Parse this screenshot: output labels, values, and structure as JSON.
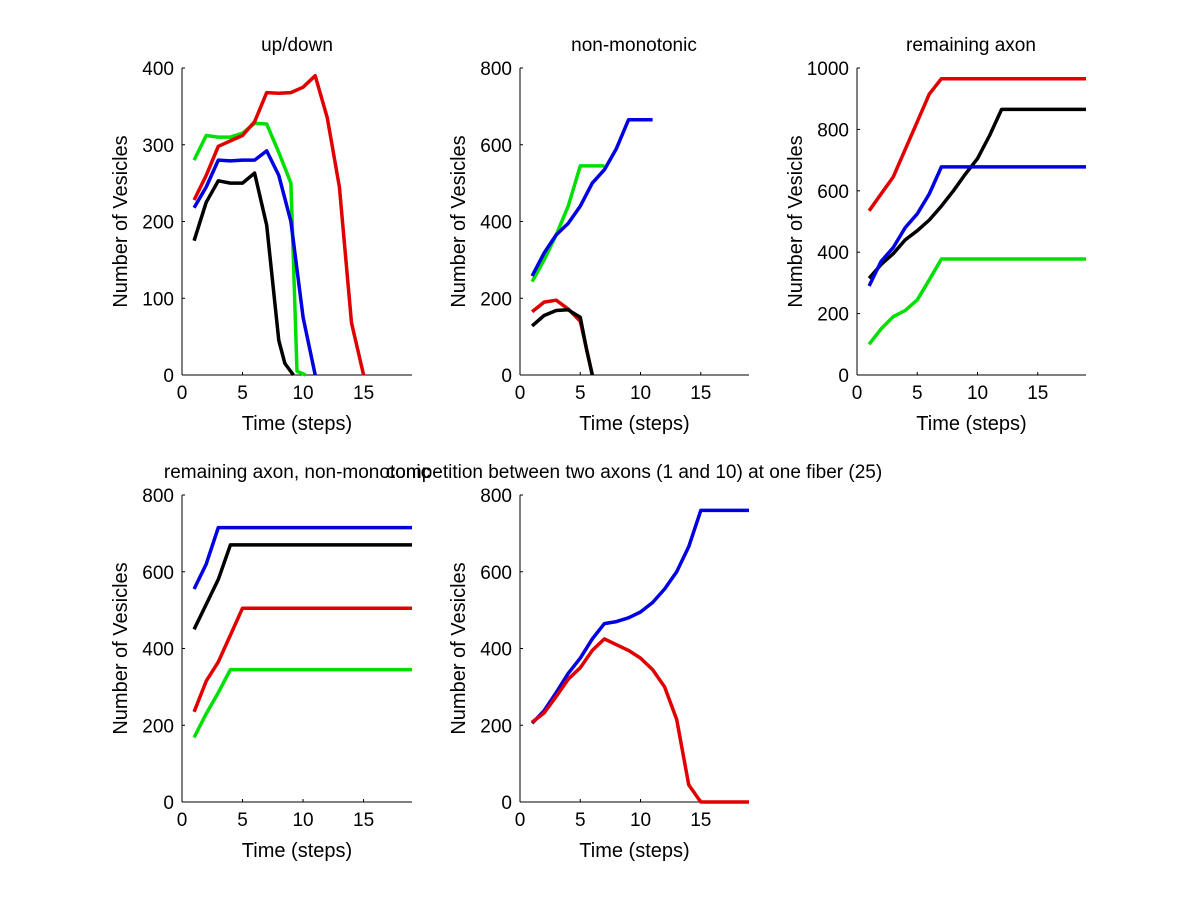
{
  "chart_data": [
    {
      "id": "updown",
      "type": "line",
      "title": "up/down",
      "xlabel": "Time (steps)",
      "ylabel": "Number of Vesicles",
      "xlim": [
        0,
        19
      ],
      "ylim": [
        0,
        400
      ],
      "xticks": [
        0,
        5,
        10,
        15
      ],
      "yticks": [
        0,
        100,
        200,
        300,
        400
      ],
      "grid": false,
      "series": [
        {
          "name": "green",
          "color": "#00e000",
          "x": [
            1,
            2,
            3,
            4,
            5,
            6,
            7,
            8,
            9,
            9.5,
            10.2
          ],
          "y": [
            280,
            312,
            310,
            310,
            315,
            328,
            327,
            290,
            250,
            5,
            0
          ]
        },
        {
          "name": "blue",
          "color": "#0000e0",
          "x": [
            1,
            2,
            3,
            4,
            5,
            6,
            7,
            8,
            9,
            10,
            11
          ],
          "y": [
            218,
            245,
            280,
            279,
            280,
            280,
            292,
            260,
            200,
            75,
            0
          ]
        },
        {
          "name": "black",
          "color": "#000000",
          "x": [
            1,
            2,
            3,
            4,
            5,
            6,
            7,
            8,
            8.5,
            9.2
          ],
          "y": [
            175,
            225,
            253,
            250,
            250,
            263,
            195,
            45,
            15,
            0
          ]
        },
        {
          "name": "red",
          "color": "#e00000",
          "x": [
            1,
            2,
            3,
            4,
            5,
            6,
            7,
            8,
            9,
            10,
            11,
            12,
            13,
            14,
            15
          ],
          "y": [
            228,
            260,
            298,
            305,
            312,
            330,
            368,
            367,
            368,
            375,
            390,
            335,
            245,
            68,
            0
          ]
        }
      ]
    },
    {
      "id": "nonmono",
      "type": "line",
      "title": "non-monotonic",
      "xlabel": "Time (steps)",
      "ylabel": "Number of Vesicles",
      "xlim": [
        0,
        19
      ],
      "ylim": [
        0,
        800
      ],
      "xticks": [
        0,
        5,
        10,
        15
      ],
      "yticks": [
        0,
        200,
        400,
        600,
        800
      ],
      "grid": false,
      "series": [
        {
          "name": "green",
          "color": "#00e000",
          "x": [
            1,
            2,
            3,
            4,
            5,
            6,
            7
          ],
          "y": [
            243,
            300,
            365,
            440,
            545,
            545,
            545
          ]
        },
        {
          "name": "blue",
          "color": "#0000e0",
          "x": [
            1,
            2,
            3,
            4,
            5,
            6,
            7,
            8,
            9,
            10,
            11
          ],
          "y": [
            258,
            318,
            365,
            395,
            440,
            500,
            535,
            590,
            665,
            665,
            665
          ]
        },
        {
          "name": "red",
          "color": "#e00000",
          "x": [
            1,
            2,
            3,
            4,
            5,
            5.5,
            6
          ],
          "y": [
            165,
            190,
            195,
            172,
            140,
            70,
            0
          ]
        },
        {
          "name": "black",
          "color": "#000000",
          "x": [
            1,
            2,
            3,
            4,
            5,
            5.5,
            6
          ],
          "y": [
            128,
            155,
            168,
            170,
            150,
            70,
            0
          ]
        }
      ]
    },
    {
      "id": "remaining",
      "type": "line",
      "title": "remaining axon",
      "xlabel": "Time (steps)",
      "ylabel": "Number of Vesicles",
      "xlim": [
        0,
        19
      ],
      "ylim": [
        0,
        1000
      ],
      "xticks": [
        0,
        5,
        10,
        15
      ],
      "yticks": [
        0,
        200,
        400,
        600,
        800,
        1000
      ],
      "grid": false,
      "series": [
        {
          "name": "red",
          "color": "#e00000",
          "x": [
            1,
            2,
            3,
            4,
            5,
            6,
            7,
            19
          ],
          "y": [
            535,
            590,
            645,
            735,
            825,
            915,
            965,
            965
          ]
        },
        {
          "name": "black",
          "color": "#000000",
          "x": [
            1,
            2,
            3,
            4,
            5,
            6,
            7,
            8,
            9,
            10,
            11,
            12,
            19
          ],
          "y": [
            315,
            360,
            395,
            440,
            470,
            505,
            550,
            600,
            655,
            705,
            780,
            865,
            865
          ]
        },
        {
          "name": "blue",
          "color": "#0000e0",
          "x": [
            1,
            2,
            3,
            4,
            5,
            6,
            7,
            19
          ],
          "y": [
            290,
            370,
            415,
            480,
            525,
            590,
            678,
            678
          ]
        },
        {
          "name": "green",
          "color": "#00e000",
          "x": [
            1,
            2,
            3,
            4,
            5,
            6,
            7,
            19
          ],
          "y": [
            100,
            150,
            190,
            210,
            245,
            310,
            378,
            378
          ]
        }
      ]
    },
    {
      "id": "remaining-nonmono",
      "type": "line",
      "title": "remaining axon, non-monotonic",
      "xlabel": "Time (steps)",
      "ylabel": "Number of Vesicles",
      "xlim": [
        0,
        19
      ],
      "ylim": [
        0,
        800
      ],
      "xticks": [
        0,
        5,
        10,
        15
      ],
      "yticks": [
        0,
        200,
        400,
        600,
        800
      ],
      "grid": false,
      "series": [
        {
          "name": "blue",
          "color": "#0000e0",
          "x": [
            1,
            2,
            3,
            19
          ],
          "y": [
            555,
            620,
            715,
            715
          ]
        },
        {
          "name": "black",
          "color": "#000000",
          "x": [
            1,
            2,
            3,
            4,
            19
          ],
          "y": [
            450,
            515,
            580,
            670,
            670
          ]
        },
        {
          "name": "red",
          "color": "#e00000",
          "x": [
            1,
            2,
            3,
            4,
            5,
            19
          ],
          "y": [
            235,
            315,
            365,
            435,
            505,
            505
          ]
        },
        {
          "name": "green",
          "color": "#00e000",
          "x": [
            1,
            2,
            3,
            4,
            19
          ],
          "y": [
            168,
            230,
            285,
            345,
            345
          ]
        }
      ]
    },
    {
      "id": "competition",
      "type": "line",
      "title": "competition between two axons (1 and 10) at one fiber (25)",
      "xlabel": "Time (steps)",
      "ylabel": "Number of Vesicles",
      "xlim": [
        0,
        19
      ],
      "ylim": [
        0,
        800
      ],
      "xticks": [
        0,
        5,
        10,
        15
      ],
      "yticks": [
        0,
        200,
        400,
        600,
        800
      ],
      "grid": false,
      "series": [
        {
          "name": "blue",
          "color": "#0000e0",
          "x": [
            1,
            2,
            3,
            4,
            5,
            6,
            7,
            8,
            9,
            10,
            11,
            12,
            13,
            14,
            15,
            19
          ],
          "y": [
            205,
            238,
            285,
            335,
            375,
            425,
            465,
            470,
            480,
            495,
            520,
            555,
            600,
            665,
            760,
            760
          ]
        },
        {
          "name": "red",
          "color": "#e00000",
          "x": [
            1,
            2,
            3,
            4,
            5,
            6,
            7,
            8,
            9,
            10,
            11,
            12,
            13,
            14,
            15,
            19
          ],
          "y": [
            208,
            232,
            275,
            320,
            350,
            395,
            425,
            410,
            395,
            375,
            345,
            300,
            215,
            45,
            0,
            0
          ]
        }
      ]
    }
  ]
}
